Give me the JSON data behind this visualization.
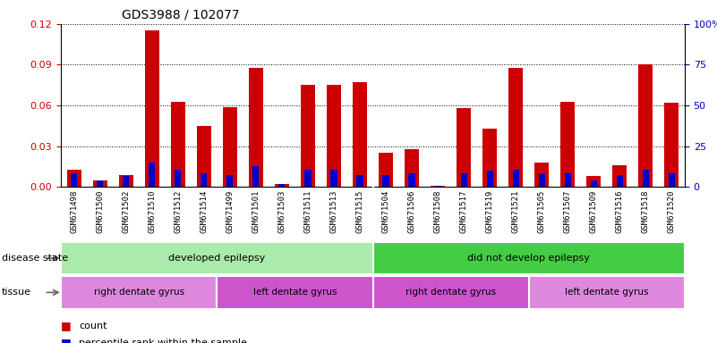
{
  "title": "GDS3988 / 102077",
  "samples": [
    "GSM671498",
    "GSM671500",
    "GSM671502",
    "GSM671510",
    "GSM671512",
    "GSM671514",
    "GSM671499",
    "GSM671501",
    "GSM671503",
    "GSM671511",
    "GSM671513",
    "GSM671515",
    "GSM671504",
    "GSM671506",
    "GSM671508",
    "GSM671517",
    "GSM671519",
    "GSM671521",
    "GSM671505",
    "GSM671507",
    "GSM671509",
    "GSM671516",
    "GSM671518",
    "GSM671520"
  ],
  "count_values": [
    0.013,
    0.005,
    0.009,
    0.115,
    0.063,
    0.045,
    0.059,
    0.088,
    0.002,
    0.075,
    0.075,
    0.077,
    0.025,
    0.028,
    0.001,
    0.058,
    0.043,
    0.088,
    0.018,
    0.063,
    0.008,
    0.016,
    0.09,
    0.062
  ],
  "percentile_scaled": [
    0.01,
    0.005,
    0.008,
    0.018,
    0.013,
    0.01,
    0.009,
    0.015,
    0.002,
    0.013,
    0.013,
    0.009,
    0.009,
    0.01,
    0.001,
    0.01,
    0.012,
    0.013,
    0.01,
    0.01,
    0.005,
    0.009,
    0.013,
    0.01
  ],
  "ylim_left": [
    0,
    0.12
  ],
  "ylim_right": [
    0,
    100
  ],
  "yticks_left": [
    0,
    0.03,
    0.06,
    0.09,
    0.12
  ],
  "yticks_right": [
    0,
    25,
    50,
    75,
    100
  ],
  "left_tick_color": "#cc0000",
  "right_tick_color": "#0000cc",
  "bar_color": "#cc0000",
  "percentile_color": "#0000cc",
  "disease_state_groups": [
    {
      "label": "developed epilepsy",
      "start": 0,
      "end": 12,
      "color": "#aaeaaa"
    },
    {
      "label": "did not develop epilepsy",
      "start": 12,
      "end": 24,
      "color": "#44cc44"
    }
  ],
  "tissue_groups": [
    {
      "label": "right dentate gyrus",
      "start": 0,
      "end": 6,
      "color": "#dd88dd"
    },
    {
      "label": "left dentate gyrus",
      "start": 6,
      "end": 12,
      "color": "#cc55cc"
    },
    {
      "label": "right dentate gyrus",
      "start": 12,
      "end": 18,
      "color": "#cc55cc"
    },
    {
      "label": "left dentate gyrus",
      "start": 18,
      "end": 24,
      "color": "#dd88dd"
    }
  ],
  "disease_state_label": "disease state",
  "tissue_label": "tissue",
  "legend_count_label": "count",
  "legend_percentile_label": "percentile rank within the sample",
  "xtick_bg": "#dddddd"
}
